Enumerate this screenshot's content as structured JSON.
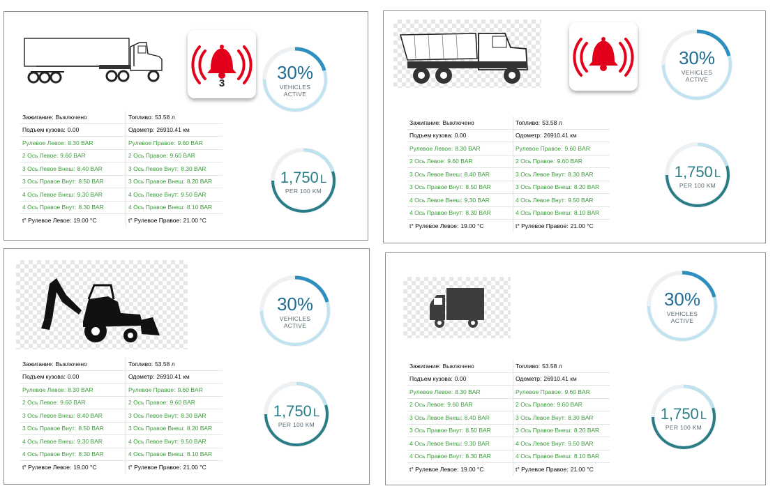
{
  "colors": {
    "ok": "#3a9a3a",
    "normal": "#111111",
    "alarm": "#e3001b",
    "gauge_blue": "#1f6d94",
    "gauge_teal": "#2a7d86"
  },
  "cards": [
    {
      "vehicle_icon": "semi-truck-icon",
      "alarm": {
        "icon": "bell-alarm-icon",
        "count": "3"
      },
      "gauge_active": {
        "value": "30%",
        "label_line1": "VEHICLES",
        "label_line2": "ACTIVE",
        "fill": 0.3
      },
      "gauge_fuel": {
        "value": "1,750",
        "unit": "L",
        "label": "PER 100 KM",
        "fill": 0.75
      },
      "rows": [
        [
          {
            "k": "Зажигание:",
            "v": "Выключено",
            "s": "normal"
          },
          {
            "k": "Топливо:",
            "v": "53.58 л",
            "s": "normal"
          }
        ],
        [
          {
            "k": "Подъем кузова:",
            "v": "0.00",
            "s": "normal"
          },
          {
            "k": "Одометр:",
            "v": "26910.41 км",
            "s": "normal"
          }
        ],
        [
          {
            "k": "Рулевое Левое:",
            "v": "8.30 BAR",
            "s": "ok"
          },
          {
            "k": "Рулевое Правое:",
            "v": "9.60 BAR",
            "s": "ok"
          }
        ],
        [
          {
            "k": "2 Ось Левое:",
            "v": "9.60 BAR",
            "s": "ok"
          },
          {
            "k": "2 Ось Правое:",
            "v": "9.60 BAR",
            "s": "ok"
          }
        ],
        [
          {
            "k": "3 Ось Левое Внеш:",
            "v": "8.40 BAR",
            "s": "ok"
          },
          {
            "k": "3 Ось Левое Внут:",
            "v": "8.30 BAR",
            "s": "ok"
          }
        ],
        [
          {
            "k": "3 Ось Правое Внут:",
            "v": "8.50 BAR",
            "s": "ok"
          },
          {
            "k": "3 Ось Правое Внеш:",
            "v": "8.20 BAR",
            "s": "ok"
          }
        ],
        [
          {
            "k": "4 Ось Левое Внеш:",
            "v": "9.30 BAR",
            "s": "ok"
          },
          {
            "k": "4 Ось Левое Внут:",
            "v": "9.50 BAR",
            "s": "ok"
          }
        ],
        [
          {
            "k": "4 Ось Правое Внут:",
            "v": "8.30 BAR",
            "s": "ok"
          },
          {
            "k": "4 Ось Правое Внеш:",
            "v": "8.10 BAR",
            "s": "ok"
          }
        ],
        [
          {
            "k": "t° Рулевое Левое:",
            "v": "19.00 °C",
            "s": "normal"
          },
          {
            "k": "t° Рулевое Правое:",
            "v": "21.00 °C",
            "s": "normal"
          }
        ]
      ]
    },
    {
      "vehicle_icon": "dump-truck-icon",
      "alarm": {
        "icon": "bell-alarm-icon",
        "count": ""
      },
      "gauge_active": {
        "value": "30%",
        "label_line1": "VEHICLES",
        "label_line2": "ACTIVE",
        "fill": 0.3
      },
      "gauge_fuel": {
        "value": "1,750",
        "unit": "L",
        "label": "PER 100 KM",
        "fill": 0.75
      },
      "rows": [
        [
          {
            "k": "Зажигание:",
            "v": "Выключено",
            "s": "normal"
          },
          {
            "k": "Топливо:",
            "v": "53.58 л",
            "s": "normal"
          }
        ],
        [
          {
            "k": "Подъем кузова:",
            "v": "0.00",
            "s": "normal"
          },
          {
            "k": "Одометр:",
            "v": "26910.41 км",
            "s": "normal"
          }
        ],
        [
          {
            "k": "Рулевое Левое:",
            "v": "8.30 BAR",
            "s": "ok"
          },
          {
            "k": "Рулевое Правое:",
            "v": "9.60 BAR",
            "s": "ok"
          }
        ],
        [
          {
            "k": "2 Ось Левое:",
            "v": "9.60 BAR",
            "s": "ok"
          },
          {
            "k": "2 Ось Правое:",
            "v": "9.60 BAR",
            "s": "ok"
          }
        ],
        [
          {
            "k": "3 Ось Левое Внеш:",
            "v": "8.40 BAR",
            "s": "ok"
          },
          {
            "k": "3 Ось Левое Внут:",
            "v": "8.30 BAR",
            "s": "ok"
          }
        ],
        [
          {
            "k": "3 Ось Правое Внут:",
            "v": "8.50 BAR",
            "s": "ok"
          },
          {
            "k": "3 Ось Правое Внеш:",
            "v": "8.20 BAR",
            "s": "ok"
          }
        ],
        [
          {
            "k": "4 Ось Левое Внеш:",
            "v": "9.30 BAR",
            "s": "ok"
          },
          {
            "k": "4 Ось Левое Внут:",
            "v": "9.50 BAR",
            "s": "ok"
          }
        ],
        [
          {
            "k": "4 Ось Правое Внут:",
            "v": "8.30 BAR",
            "s": "ok"
          },
          {
            "k": "4 Ось Правое Внеш:",
            "v": "8.10 BAR",
            "s": "ok"
          }
        ],
        [
          {
            "k": "t° Рулевое Левое:",
            "v": "19.00 °C",
            "s": "normal"
          },
          {
            "k": "t° Рулевое Правое:",
            "v": "21.00 °C",
            "s": "normal"
          }
        ]
      ]
    },
    {
      "vehicle_icon": "backhoe-loader-icon",
      "alarm": null,
      "gauge_active": {
        "value": "30%",
        "label_line1": "VEHICLES",
        "label_line2": "ACTIVE",
        "fill": 0.3
      },
      "gauge_fuel": {
        "value": "1,750",
        "unit": "L",
        "label": "PER 100 KM",
        "fill": 0.75
      },
      "rows": [
        [
          {
            "k": "Зажигание:",
            "v": "Выключено",
            "s": "normal"
          },
          {
            "k": "Топливо:",
            "v": "53.58 л",
            "s": "normal"
          }
        ],
        [
          {
            "k": "Подъем кузова:",
            "v": "0.00",
            "s": "normal"
          },
          {
            "k": "Одометр:",
            "v": "26910.41 км",
            "s": "normal"
          }
        ],
        [
          {
            "k": "Рулевое Левое:",
            "v": "8.30 BAR",
            "s": "ok"
          },
          {
            "k": "Рулевое Правое:",
            "v": "9.60 BAR",
            "s": "ok"
          }
        ],
        [
          {
            "k": "2 Ось Левое:",
            "v": "9.60 BAR",
            "s": "ok"
          },
          {
            "k": "2 Ось Правое:",
            "v": "9.60 BAR",
            "s": "ok"
          }
        ],
        [
          {
            "k": "3 Ось Левое Внеш:",
            "v": "8.40 BAR",
            "s": "ok"
          },
          {
            "k": "3 Ось Левое Внут:",
            "v": "8.30 BAR",
            "s": "ok"
          }
        ],
        [
          {
            "k": "3 Ось Правое Внут:",
            "v": "8.50 BAR",
            "s": "ok"
          },
          {
            "k": "3 Ось Правое Внеш:",
            "v": "8.20 BAR",
            "s": "ok"
          }
        ],
        [
          {
            "k": "4 Ось Левое Внеш:",
            "v": "9.30 BAR",
            "s": "ok"
          },
          {
            "k": "4 Ось Левое Внут:",
            "v": "9.50 BAR",
            "s": "ok"
          }
        ],
        [
          {
            "k": "4 Ось Правое Внут:",
            "v": "8.30 BAR",
            "s": "ok"
          },
          {
            "k": "4 Ось Правое Внеш:",
            "v": "8.10 BAR",
            "s": "ok"
          }
        ],
        [
          {
            "k": "t° Рулевое Левое:",
            "v": "19.00 °C",
            "s": "normal"
          },
          {
            "k": "t° Рулевое Правое:",
            "v": "21.00 °C",
            "s": "normal"
          }
        ]
      ]
    },
    {
      "vehicle_icon": "box-truck-icon",
      "alarm": null,
      "gauge_active": {
        "value": "30%",
        "label_line1": "VEHICLES",
        "label_line2": "ACTIVE",
        "fill": 0.3
      },
      "gauge_fuel": {
        "value": "1,750",
        "unit": "L",
        "label": "PER 100 KM",
        "fill": 0.75
      },
      "rows": [
        [
          {
            "k": "Зажигание:",
            "v": "Выключено",
            "s": "normal"
          },
          {
            "k": "Топливо:",
            "v": "53.58 л",
            "s": "normal"
          }
        ],
        [
          {
            "k": "Подъем кузова:",
            "v": "0.00",
            "s": "normal"
          },
          {
            "k": "Одометр:",
            "v": "26910.41 км",
            "s": "normal"
          }
        ],
        [
          {
            "k": "Рулевое Левое:",
            "v": "8.30 BAR",
            "s": "ok"
          },
          {
            "k": "Рулевое Правое:",
            "v": "9.60 BAR",
            "s": "ok"
          }
        ],
        [
          {
            "k": "2 Ось Левое:",
            "v": "9.60 BAR",
            "s": "ok"
          },
          {
            "k": "2 Ось Правое:",
            "v": "9.60 BAR",
            "s": "ok"
          }
        ],
        [
          {
            "k": "3 Ось Левое Внеш:",
            "v": "8.40 BAR",
            "s": "ok"
          },
          {
            "k": "3 Ось Левое Внут:",
            "v": "8.30 BAR",
            "s": "ok"
          }
        ],
        [
          {
            "k": "3 Ось Правое Внут:",
            "v": "8.50 BAR",
            "s": "ok"
          },
          {
            "k": "3 Ось Правое Внеш:",
            "v": "8.20 BAR",
            "s": "ok"
          }
        ],
        [
          {
            "k": "4 Ось Левое Внеш:",
            "v": "9.30 BAR",
            "s": "ok"
          },
          {
            "k": "4 Ось Левое Внут:",
            "v": "9.50 BAR",
            "s": "ok"
          }
        ],
        [
          {
            "k": "4 Ось Правое Внут:",
            "v": "8.30 BAR",
            "s": "ok"
          },
          {
            "k": "4 Ось Правое Внеш:",
            "v": "8.10 BAR",
            "s": "ok"
          }
        ],
        [
          {
            "k": "t° Рулевое Левое:",
            "v": "19.00 °C",
            "s": "normal"
          },
          {
            "k": "t° Рулевое Правое:",
            "v": "21.00 °C",
            "s": "normal"
          }
        ]
      ]
    }
  ]
}
